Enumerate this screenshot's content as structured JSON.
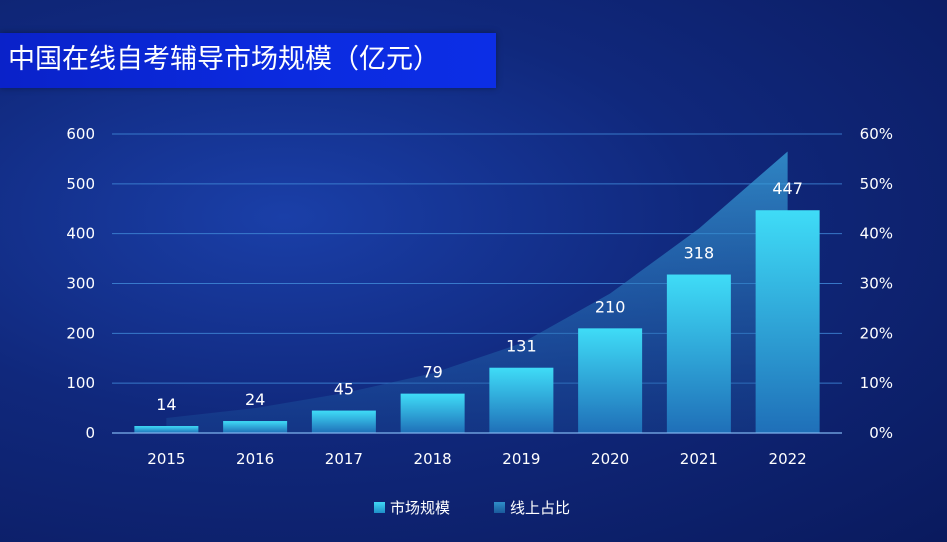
{
  "title": "中国在线自考辅导市场规模（亿元）",
  "colors": {
    "bar_top": "#3fdcf7",
    "bar_bottom": "#1f6fb8",
    "area": "#2f9fd9",
    "grid": "#3f86d6"
  },
  "chart_data": {
    "type": "bar",
    "categories": [
      "2015",
      "2016",
      "2017",
      "2018",
      "2019",
      "2020",
      "2021",
      "2022"
    ],
    "series": [
      {
        "name": "市场规模",
        "type": "bar",
        "axis": "left",
        "values": [
          14,
          24,
          45,
          79,
          131,
          210,
          318,
          447
        ]
      },
      {
        "name": "线上占比",
        "type": "area",
        "axis": "right",
        "values": [
          0.03,
          0.05,
          0.08,
          0.12,
          0.18,
          0.28,
          0.41,
          0.565
        ]
      }
    ],
    "y_left": {
      "ticks": [
        "0",
        "100",
        "200",
        "300",
        "400",
        "500",
        "600"
      ],
      "range": [
        0,
        600
      ]
    },
    "y_right": {
      "ticks": [
        "0%",
        "10%",
        "20%",
        "30%",
        "40%",
        "50%",
        "60%"
      ],
      "range": [
        0,
        0.6
      ]
    },
    "grid": true,
    "legend_position": "bottom-center"
  },
  "legend": {
    "items": [
      "市场规模",
      "线上占比"
    ]
  }
}
